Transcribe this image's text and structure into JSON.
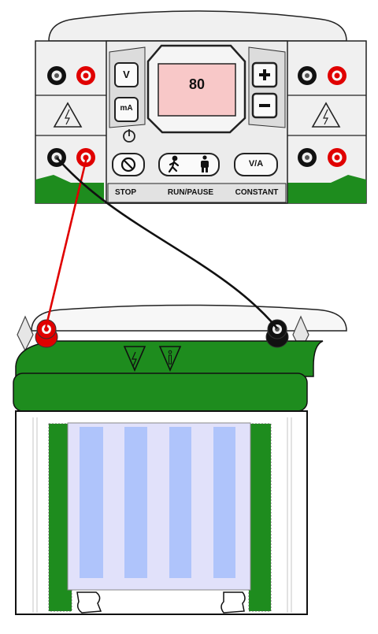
{
  "power_supply": {
    "display_value": "80",
    "buttons": {
      "volt": "V",
      "milliamp": "mA",
      "stop": "STOP",
      "run_pause": "RUN/PAUSE",
      "constant": "CONSTANT",
      "mode": "V/A"
    }
  },
  "colors": {
    "case_gray": "#f0f0f0",
    "outline": "#222222",
    "display_bg": "#f8c8c8",
    "gel_green": "#1e8c1e",
    "gel_blue": "#afc4fb",
    "gel_tray": "#e1e1fa",
    "lead_red": "#e00000",
    "lead_black": "#111111"
  }
}
